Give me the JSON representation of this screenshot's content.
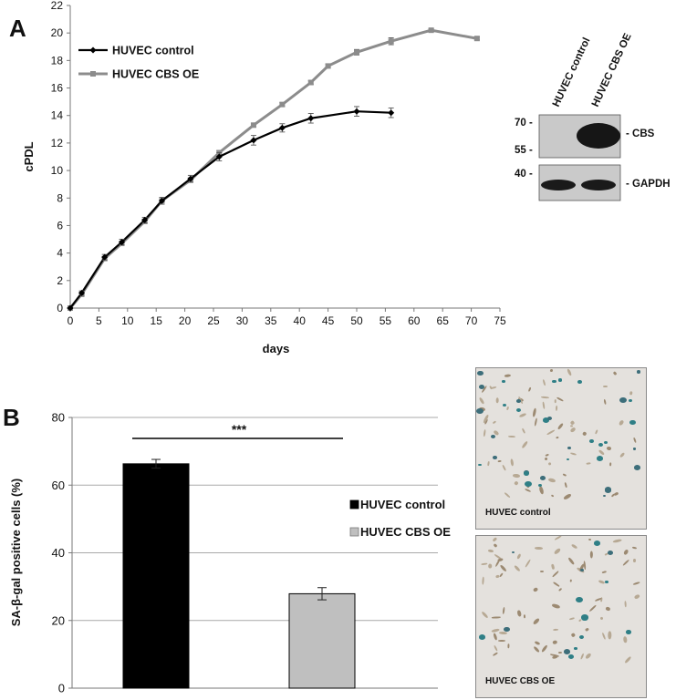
{
  "panels": {
    "a": "A",
    "b": "B"
  },
  "chart_data": [
    {
      "type": "line",
      "panel": "A",
      "xlabel": "days",
      "ylabel": "cPDL",
      "xlim": [
        0,
        75
      ],
      "ylim": [
        0,
        22
      ],
      "xticks": [
        0,
        5,
        10,
        15,
        20,
        25,
        30,
        35,
        40,
        45,
        50,
        55,
        60,
        65,
        70,
        75
      ],
      "yticks": [
        0,
        2,
        4,
        6,
        8,
        10,
        12,
        14,
        16,
        18,
        20,
        22
      ],
      "legend_position": "top-left",
      "series": [
        {
          "name": "HUVEC control",
          "color": "#000000",
          "marker": "diamond",
          "x": [
            0,
            2,
            6,
            9,
            13,
            16,
            21,
            26,
            32,
            37,
            42,
            50,
            56
          ],
          "y": [
            0,
            1.1,
            3.7,
            4.8,
            6.4,
            7.8,
            9.4,
            11.0,
            12.2,
            13.1,
            13.8,
            14.3,
            14.2
          ],
          "err": [
            0,
            0.15,
            0.2,
            0.2,
            0.2,
            0.25,
            0.25,
            0.3,
            0.35,
            0.3,
            0.35,
            0.35,
            0.35
          ]
        },
        {
          "name": "HUVEC CBS OE",
          "color": "#8c8c8c",
          "marker": "square",
          "x": [
            0,
            2,
            6,
            9,
            13,
            16,
            21,
            26,
            32,
            37,
            42,
            45,
            50,
            56,
            63,
            71
          ],
          "y": [
            0,
            1.0,
            3.6,
            4.7,
            6.3,
            7.8,
            9.3,
            11.3,
            13.3,
            14.8,
            16.4,
            17.6,
            18.6,
            19.4,
            20.2,
            19.6
          ],
          "err": [
            0,
            0.1,
            0.15,
            0.15,
            0.15,
            0.15,
            0.15,
            0.15,
            0.15,
            0.15,
            0.15,
            0.15,
            0.2,
            0.25,
            0.1,
            0.1
          ]
        }
      ]
    },
    {
      "type": "bar",
      "panel": "B",
      "ylabel": "SA-β-gal positive cells (%)",
      "ylim": [
        0,
        80
      ],
      "yticks": [
        0,
        20,
        40,
        60,
        80
      ],
      "categories": [
        "HUVEC control",
        "HUVEC CBS OE"
      ],
      "values": [
        66.3,
        27.9
      ],
      "errors": [
        1.3,
        1.8
      ],
      "colors": [
        "#000000",
        "#bfbfbf"
      ],
      "significance": "***",
      "legend_position": "right",
      "grid": true
    }
  ],
  "western_blot": {
    "lanes": [
      "HUVEC control",
      "HUVEC CBS OE"
    ],
    "markers_top": [
      "70 -",
      "55 -"
    ],
    "markers_bottom": [
      "40 -"
    ],
    "bands": [
      "- CBS",
      "- GAPDH"
    ]
  },
  "micrographs": [
    {
      "label": "HUVEC control"
    },
    {
      "label": "HUVEC CBS OE"
    }
  ]
}
